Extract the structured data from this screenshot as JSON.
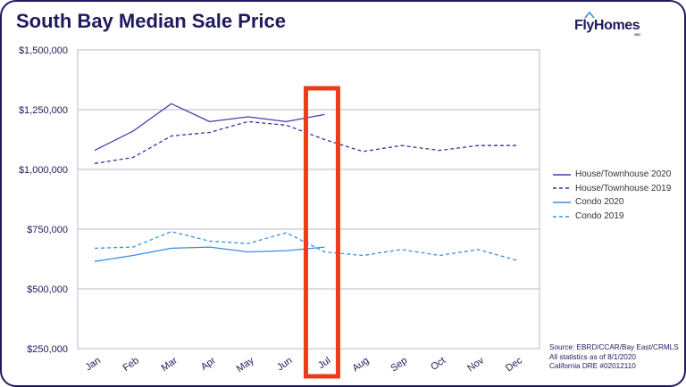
{
  "header": {
    "title": "South Bay Median Sale Price",
    "logo_text": "FlyHomes",
    "logo_suffix": "INC"
  },
  "colors": {
    "navy": "#1f1a5e",
    "series_2020_house": "#4b3ab3",
    "series_2019_house": "#3b2f9e",
    "series_condo": "#3a8fe0",
    "highlight": "#f03a1c",
    "grid": "#b8b8c8"
  },
  "chart_data": {
    "type": "line",
    "title": "South Bay Median Sale Price",
    "xlabel": "",
    "ylabel": "",
    "categories": [
      "Jan",
      "Feb",
      "Mar",
      "Apr",
      "May",
      "Jun",
      "Jul",
      "Aug",
      "Sep",
      "Oct",
      "Nov",
      "Dec"
    ],
    "ylim": [
      250000,
      1500000
    ],
    "yticks": [
      250000,
      500000,
      750000,
      1000000,
      1250000,
      1500000
    ],
    "ytick_labels": [
      "$250,000",
      "$500,000",
      "$750,000",
      "$1,000,000",
      "$1,250,000",
      "$1,500,000"
    ],
    "series": [
      {
        "name": "House/Townhouse 2020",
        "style": "solid",
        "color": "#4b3ab3",
        "values": [
          1080000,
          1160000,
          1275000,
          1200000,
          1220000,
          1200000,
          1230000,
          null,
          null,
          null,
          null,
          null
        ]
      },
      {
        "name": "House/Townhouse 2019",
        "style": "dashed",
        "color": "#3b2f9e",
        "values": [
          1025000,
          1050000,
          1140000,
          1155000,
          1200000,
          1185000,
          1125000,
          1075000,
          1100000,
          1080000,
          1100000,
          1100000
        ]
      },
      {
        "name": "Condo 2020",
        "style": "solid",
        "color": "#3a8fe0",
        "values": [
          615000,
          640000,
          670000,
          675000,
          655000,
          660000,
          675000,
          null,
          null,
          null,
          null,
          null
        ]
      },
      {
        "name": "Condo 2019",
        "style": "dashed",
        "color": "#3a8fe0",
        "values": [
          670000,
          675000,
          740000,
          700000,
          690000,
          735000,
          655000,
          640000,
          665000,
          640000,
          665000,
          620000
        ]
      }
    ],
    "highlight_category": "Jul",
    "legend_position": "right",
    "grid": true
  },
  "source_lines": [
    "Source: EBRD/CCAR/Bay East/CRMLS",
    "All statistics as of 8/1/2020",
    "California DRE #02012110"
  ]
}
